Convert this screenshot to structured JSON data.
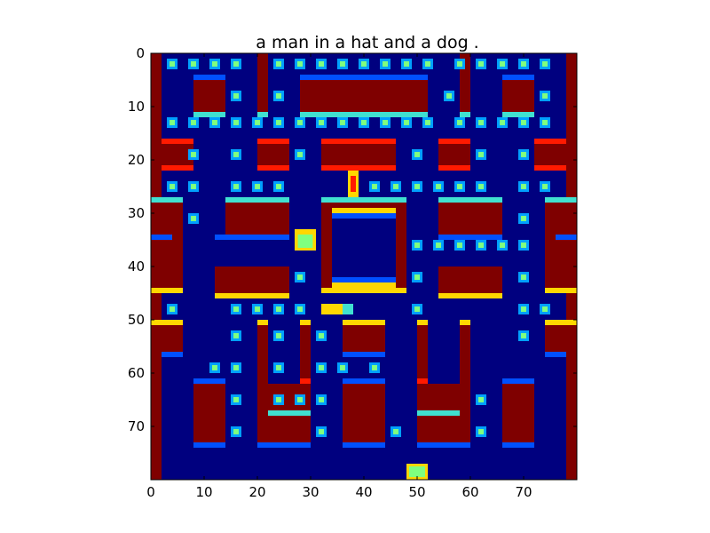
{
  "chart_data": {
    "type": "heatmap",
    "title": "a man in a hat and a dog .",
    "xlabel": "",
    "ylabel": "",
    "xlim": [
      0,
      80
    ],
    "ylim": [
      0,
      80
    ],
    "y_inverted": true,
    "grid": false,
    "xticks": [
      0,
      10,
      20,
      30,
      40,
      50,
      60,
      70
    ],
    "yticks": [
      0,
      10,
      20,
      30,
      40,
      50,
      60,
      70
    ],
    "colormap": "jet",
    "colors": {
      "background": "#00007f",
      "wall": "#7f0000",
      "pellet_outer": "#00a0ff",
      "pellet_inner": "#7fff7f",
      "edge_cyan": "#40e0d0",
      "edge_yellow": "#ffd700",
      "edge_blue": "#0050ff",
      "edge_red": "#ff1a00"
    }
  }
}
